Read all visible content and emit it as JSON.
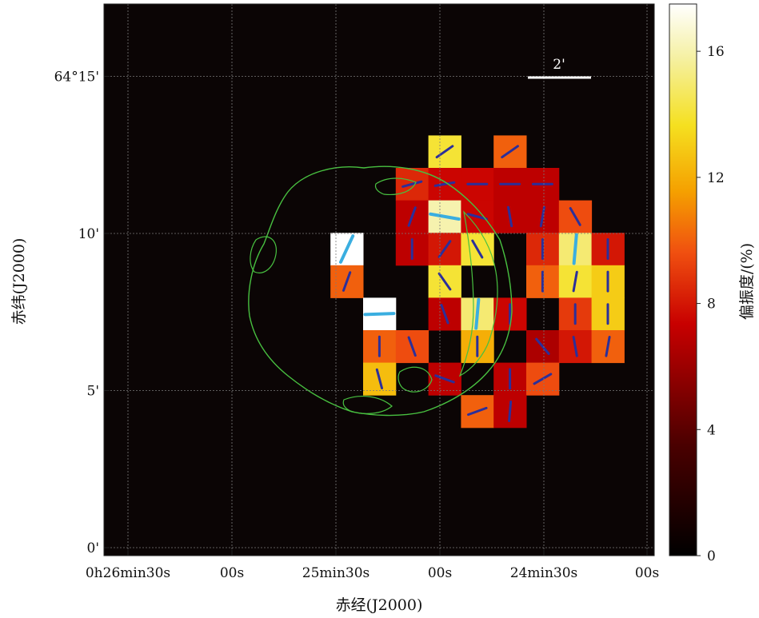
{
  "chart_data": {
    "type": "heatmap",
    "title": "",
    "xlabel": "赤经(J2000)",
    "ylabel": "赤纬(J2000)",
    "x_ticks": [
      "0h26min30s",
      "00s",
      "25min30s",
      "00s",
      "24min30s",
      "00s"
    ],
    "y_ticks": [
      "0'",
      "5'",
      "10'",
      "64°15'"
    ],
    "y_tick_arcmin": [
      0,
      5,
      10,
      15
    ],
    "grid": true,
    "scale_bar_label": "2'",
    "colorbar": {
      "label": "偏振度/(%)",
      "ticks": [
        0,
        4,
        8,
        12,
        16
      ],
      "range": [
        0,
        17.5
      ],
      "colormap": "afmhot"
    },
    "pixels_note": "polarization degree (%) per map pixel; col/row are map pixel indices (col 0 = east/left, row 0 = top), vector angle in degrees from north",
    "pixels": [
      {
        "col": 7,
        "row": 4,
        "value": 14.0,
        "angle": 55
      },
      {
        "col": 9,
        "row": 4,
        "value": 10.0,
        "angle": 55
      },
      {
        "col": 6,
        "row": 5,
        "value": 8.5,
        "angle": 75
      },
      {
        "col": 7,
        "row": 5,
        "value": 7.5,
        "angle": 80
      },
      {
        "col": 8,
        "row": 5,
        "value": 7.5,
        "angle": 90
      },
      {
        "col": 9,
        "row": 5,
        "value": 7.0,
        "angle": 90
      },
      {
        "col": 10,
        "row": 5,
        "value": 7.0,
        "angle": 90
      },
      {
        "col": 6,
        "row": 6,
        "value": 7.0,
        "angle": 20
      },
      {
        "col": 7,
        "row": 6,
        "value": 16.0,
        "angle": -80
      },
      {
        "col": 8,
        "row": 6,
        "value": 7.5,
        "angle": -75
      },
      {
        "col": 9,
        "row": 6,
        "value": 7.0,
        "angle": -10
      },
      {
        "col": 10,
        "row": 6,
        "value": 7.0,
        "angle": 10
      },
      {
        "col": 11,
        "row": 6,
        "value": 9.5,
        "angle": -30
      },
      {
        "col": 4,
        "row": 7,
        "value": 17.5,
        "angle": 25
      },
      {
        "col": 6,
        "row": 7,
        "value": 7.0,
        "angle": 0
      },
      {
        "col": 7,
        "row": 7,
        "value": 8.0,
        "angle": 35
      },
      {
        "col": 8,
        "row": 7,
        "value": 14.0,
        "angle": -30
      },
      {
        "col": 10,
        "row": 7,
        "value": 8.5,
        "angle": 0
      },
      {
        "col": 11,
        "row": 7,
        "value": 15.0,
        "angle": 5
      },
      {
        "col": 12,
        "row": 7,
        "value": 8.0,
        "angle": 0
      },
      {
        "col": 4,
        "row": 8,
        "value": 10.0,
        "angle": 20
      },
      {
        "col": 7,
        "row": 8,
        "value": 14.0,
        "angle": -35
      },
      {
        "col": 10,
        "row": 8,
        "value": 10.0,
        "angle": 0
      },
      {
        "col": 11,
        "row": 8,
        "value": 14.0,
        "angle": 10
      },
      {
        "col": 12,
        "row": 8,
        "value": 13.0,
        "angle": 0
      },
      {
        "col": 5,
        "row": 9,
        "value": 17.5,
        "angle": 88
      },
      {
        "col": 7,
        "row": 9,
        "value": 7.0,
        "angle": -20
      },
      {
        "col": 8,
        "row": 9,
        "value": 15.0,
        "angle": 5
      },
      {
        "col": 9,
        "row": 9,
        "value": 7.5,
        "angle": 0
      },
      {
        "col": 11,
        "row": 9,
        "value": 9.0,
        "angle": 0
      },
      {
        "col": 12,
        "row": 9,
        "value": 13.0,
        "angle": 0
      },
      {
        "col": 5,
        "row": 10,
        "value": 10.0,
        "angle": 0
      },
      {
        "col": 6,
        "row": 10,
        "value": 9.5,
        "angle": -20
      },
      {
        "col": 8,
        "row": 10,
        "value": 12.0,
        "angle": 0
      },
      {
        "col": 10,
        "row": 10,
        "value": 6.5,
        "angle": -40
      },
      {
        "col": 11,
        "row": 10,
        "value": 8.0,
        "angle": -10
      },
      {
        "col": 12,
        "row": 10,
        "value": 10.0,
        "angle": 10
      },
      {
        "col": 5,
        "row": 11,
        "value": 12.5,
        "angle": -15
      },
      {
        "col": 7,
        "row": 11,
        "value": 7.0,
        "angle": -70
      },
      {
        "col": 9,
        "row": 11,
        "value": 7.0,
        "angle": 0
      },
      {
        "col": 10,
        "row": 11,
        "value": 9.5,
        "angle": 60
      },
      {
        "col": 8,
        "row": 12,
        "value": 10.0,
        "angle": 70
      },
      {
        "col": 9,
        "row": 12,
        "value": 7.0,
        "angle": 5
      }
    ]
  }
}
